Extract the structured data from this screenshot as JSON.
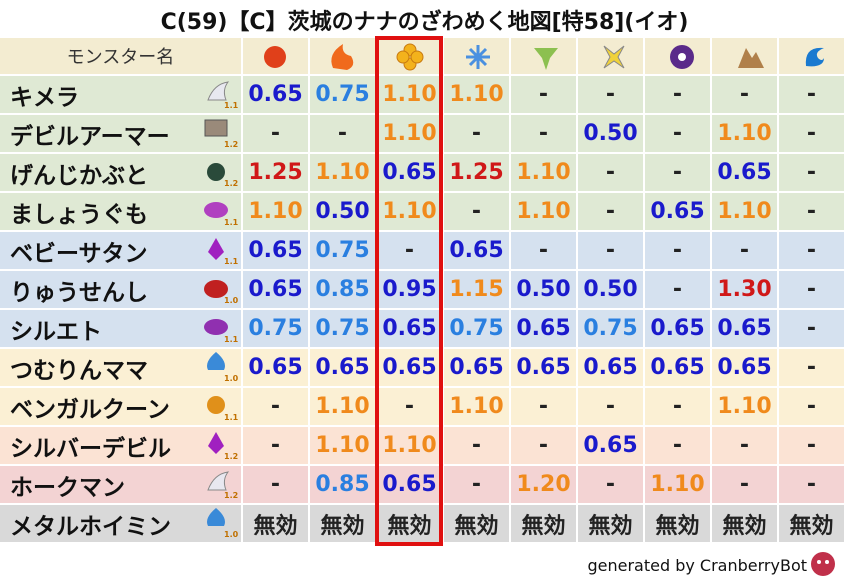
{
  "title": "C(59)【C】茨城のナナのざわめく地図[特58](イオ)",
  "header": {
    "label": "モンスター名",
    "background": "#f3ecd1"
  },
  "rows": [
    {
      "name": "キメラ",
      "rank": "1.1",
      "background": "#dfe9d4",
      "values": [
        "0.65",
        "0.75",
        "1.10",
        "1.10",
        "-",
        "-",
        "-",
        "-",
        "-"
      ],
      "colors": [
        "#1a1acc",
        "#2a7fe0",
        "#f08a1c",
        "#f08a1c",
        "#222222",
        "#222222",
        "#222222",
        "#222222",
        "#222222"
      ]
    },
    {
      "name": "デビルアーマー",
      "rank": "1.2",
      "background": "#dfe9d4",
      "values": [
        "-",
        "-",
        "1.10",
        "-",
        "-",
        "0.50",
        "-",
        "1.10",
        "-"
      ],
      "colors": [
        "#222222",
        "#222222",
        "#f08a1c",
        "#222222",
        "#222222",
        "#1a1acc",
        "#222222",
        "#f08a1c",
        "#222222"
      ]
    },
    {
      "name": "げんじかぶと",
      "rank": "1.2",
      "background": "#dfe9d4",
      "values": [
        "1.25",
        "1.10",
        "0.65",
        "1.25",
        "1.10",
        "-",
        "-",
        "0.65",
        "-"
      ],
      "colors": [
        "#d01818",
        "#f08a1c",
        "#1a1acc",
        "#d01818",
        "#f08a1c",
        "#222222",
        "#222222",
        "#1a1acc",
        "#222222"
      ]
    },
    {
      "name": "ましょうぐも",
      "rank": "1.1",
      "background": "#dfe9d4",
      "values": [
        "1.10",
        "0.50",
        "1.10",
        "-",
        "1.10",
        "-",
        "0.65",
        "1.10",
        "-"
      ],
      "colors": [
        "#f08a1c",
        "#1a1acc",
        "#f08a1c",
        "#222222",
        "#f08a1c",
        "#222222",
        "#1a1acc",
        "#f08a1c",
        "#222222"
      ]
    },
    {
      "name": "ベビーサタン",
      "rank": "1.1",
      "background": "#d5e1ef",
      "values": [
        "0.65",
        "0.75",
        "-",
        "0.65",
        "-",
        "-",
        "-",
        "-",
        "-"
      ],
      "colors": [
        "#1a1acc",
        "#2a7fe0",
        "#222222",
        "#1a1acc",
        "#222222",
        "#222222",
        "#222222",
        "#222222",
        "#222222"
      ]
    },
    {
      "name": "りゅうせんし",
      "rank": "1.0",
      "background": "#d5e1ef",
      "values": [
        "0.65",
        "0.85",
        "0.95",
        "1.15",
        "0.50",
        "0.50",
        "-",
        "1.30",
        "-"
      ],
      "colors": [
        "#1a1acc",
        "#2a7fe0",
        "#1a1acc",
        "#f08a1c",
        "#1a1acc",
        "#1a1acc",
        "#222222",
        "#d01818",
        "#222222"
      ]
    },
    {
      "name": "シルエト",
      "rank": "1.1",
      "background": "#d5e1ef",
      "values": [
        "0.75",
        "0.75",
        "0.65",
        "0.75",
        "0.65",
        "0.75",
        "0.65",
        "0.65",
        "-"
      ],
      "colors": [
        "#2a7fe0",
        "#2a7fe0",
        "#1a1acc",
        "#2a7fe0",
        "#1a1acc",
        "#2a7fe0",
        "#1a1acc",
        "#1a1acc",
        "#222222"
      ]
    },
    {
      "name": "つむりんママ",
      "rank": "1.0",
      "background": "#fbf0d4",
      "values": [
        "0.65",
        "0.65",
        "0.65",
        "0.65",
        "0.65",
        "0.65",
        "0.65",
        "0.65",
        "-"
      ],
      "colors": [
        "#1a1acc",
        "#1a1acc",
        "#1a1acc",
        "#1a1acc",
        "#1a1acc",
        "#1a1acc",
        "#1a1acc",
        "#1a1acc",
        "#222222"
      ]
    },
    {
      "name": "ベンガルクーン",
      "rank": "1.1",
      "background": "#fbf0d4",
      "values": [
        "-",
        "1.10",
        "-",
        "1.10",
        "-",
        "-",
        "-",
        "1.10",
        "-"
      ],
      "colors": [
        "#222222",
        "#f08a1c",
        "#222222",
        "#f08a1c",
        "#222222",
        "#222222",
        "#222222",
        "#f08a1c",
        "#222222"
      ]
    },
    {
      "name": "シルバーデビル",
      "rank": "1.2",
      "background": "#fbe3d4",
      "values": [
        "-",
        "1.10",
        "1.10",
        "-",
        "-",
        "0.65",
        "-",
        "-",
        "-"
      ],
      "colors": [
        "#222222",
        "#f08a1c",
        "#f08a1c",
        "#222222",
        "#222222",
        "#1a1acc",
        "#222222",
        "#222222",
        "#222222"
      ]
    },
    {
      "name": "ホークマン",
      "rank": "1.2",
      "background": "#f3d3d3",
      "values": [
        "-",
        "0.85",
        "0.65",
        "-",
        "1.20",
        "-",
        "1.10",
        "-",
        "-"
      ],
      "colors": [
        "#222222",
        "#2a7fe0",
        "#1a1acc",
        "#222222",
        "#f08a1c",
        "#222222",
        "#f08a1c",
        "#222222",
        "#222222"
      ]
    },
    {
      "name": "メタルホイミン",
      "rank": "1.0",
      "background": "#d9d9d9",
      "values": [
        "無効",
        "無効",
        "無効",
        "無効",
        "無効",
        "無効",
        "無効",
        "無効",
        "無効"
      ],
      "colors": [
        "#222222",
        "#222222",
        "#222222",
        "#222222",
        "#222222",
        "#222222",
        "#222222",
        "#222222",
        "#222222"
      ]
    }
  ],
  "footer": "generated by CranberryBot"
}
